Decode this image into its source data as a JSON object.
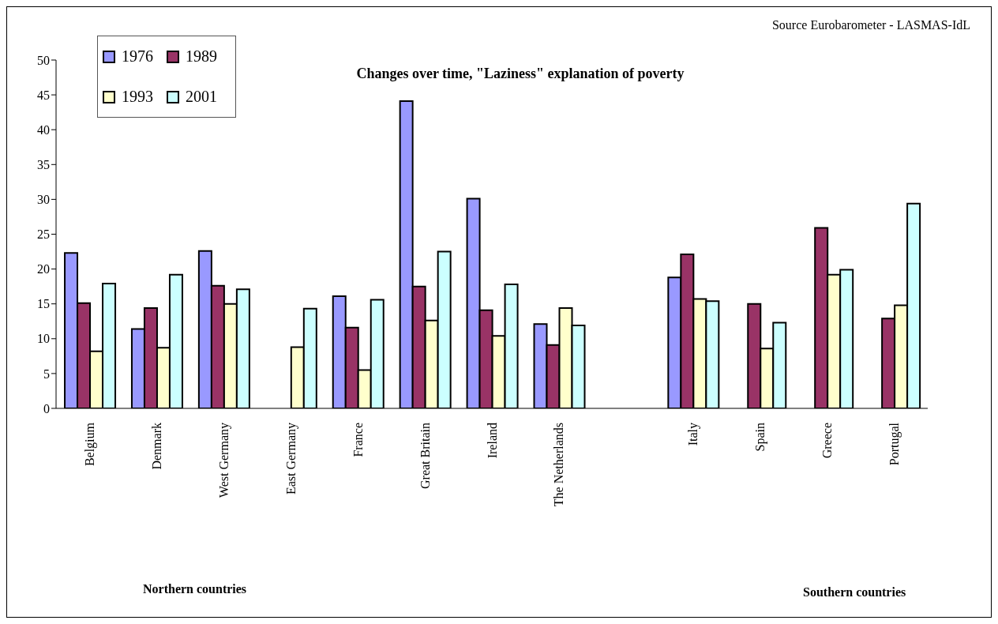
{
  "chart_data": {
    "type": "bar",
    "title": "Changes over time, \"Laziness\" explanation of poverty",
    "annotations": [
      "Source Eurobarometer - LASMAS-IdL",
      "Northern countries",
      "Southern countries"
    ],
    "categories": [
      "Belgium",
      "Denmark",
      "West Germany",
      "East Germany",
      "France",
      "Great Britain",
      "Ireland",
      "The Netherlands",
      null,
      "Italy",
      "Spain",
      "Greece",
      "Portugal"
    ],
    "series": [
      {
        "name": "1976",
        "color": "#9999ff",
        "values": [
          22.3,
          11.4,
          22.6,
          null,
          16.1,
          44.1,
          30.1,
          12.1,
          null,
          18.8,
          null,
          null,
          null
        ]
      },
      {
        "name": "1989",
        "color": "#993366",
        "values": [
          15.1,
          14.4,
          17.6,
          null,
          11.6,
          17.5,
          14.1,
          9.1,
          null,
          22.1,
          15.0,
          25.9,
          12.9
        ]
      },
      {
        "name": "1993",
        "color": "#ffffcc",
        "values": [
          8.2,
          8.7,
          15.0,
          8.8,
          5.5,
          12.6,
          10.4,
          14.4,
          null,
          15.7,
          8.6,
          19.2,
          14.8
        ]
      },
      {
        "name": "2001",
        "color": "#ccffff",
        "values": [
          17.9,
          19.2,
          17.1,
          14.3,
          15.6,
          22.5,
          17.8,
          11.9,
          null,
          15.4,
          12.3,
          19.9,
          29.4
        ]
      }
    ],
    "ylim": [
      0,
      50
    ],
    "yticks": [
      0,
      5,
      10,
      15,
      20,
      25,
      30,
      35,
      40,
      45,
      50
    ],
    "grid": false,
    "legend": "top left"
  }
}
